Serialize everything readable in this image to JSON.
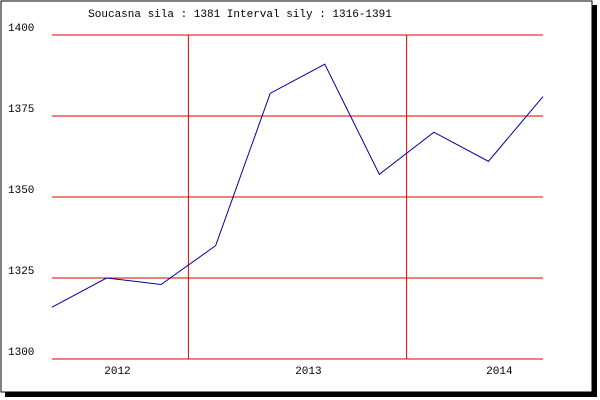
{
  "chart_data": {
    "type": "line",
    "title": "Soucasna sila : 1381  Interval sily : 1316-1391",
    "x": [
      0,
      1,
      2,
      3,
      4,
      5,
      6,
      7,
      8,
      9
    ],
    "series": [
      {
        "color": "#0000a0",
        "values": [
          1316,
          1325,
          1323,
          1335,
          1382,
          1391,
          1357,
          1370,
          1361,
          1381
        ]
      }
    ],
    "xlim": [
      0,
      9
    ],
    "xticks": [
      {
        "value": 1.2,
        "label": "2012"
      },
      {
        "value": 4.7,
        "label": "2013"
      },
      {
        "value": 8.2,
        "label": "2014"
      }
    ],
    "xgrid": [
      2.5,
      6.5
    ],
    "ylim": [
      1300,
      1400
    ],
    "yticks": [
      1300,
      1325,
      1350,
      1375,
      1400
    ],
    "grid": true,
    "grid_color": "#e00000"
  }
}
